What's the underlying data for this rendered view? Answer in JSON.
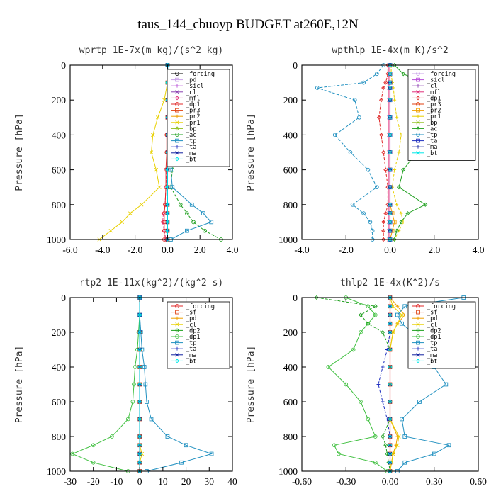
{
  "figure_title": "taus_144_cbuoyp  BUDGET at260E,12N",
  "chart_data": [
    {
      "type": "line",
      "title": "wprtp  1E-7x(m kg)/(s^2 kg)",
      "ylabel": "Pressure [hPa]",
      "xlim": [
        -6,
        4
      ],
      "ylim": [
        1000,
        0
      ],
      "xticks": [
        "-6.0",
        "-4.0",
        "-2.0",
        "0.0",
        "2.0",
        "4.0"
      ],
      "xtick_values": [
        -6,
        -4,
        -2,
        0,
        2,
        4
      ],
      "yticks": [
        "0",
        "200",
        "400",
        "600",
        "800",
        "1000"
      ],
      "ytick_values": [
        0,
        200,
        400,
        600,
        800,
        1000
      ],
      "legend_position": "top-right",
      "y": [
        0,
        100,
        200,
        300,
        400,
        500,
        600,
        700,
        800,
        850,
        900,
        950,
        1000
      ],
      "series": [
        {
          "name": "_forcing",
          "color": "#000000",
          "x": [
            0,
            0,
            0,
            0,
            0,
            0,
            0,
            0,
            0,
            0,
            0,
            0,
            0
          ]
        },
        {
          "name": "_pd",
          "color": "#c8a0e8",
          "x": [
            0,
            0,
            0,
            0,
            0,
            0,
            0,
            0,
            0,
            0,
            0,
            0,
            0
          ]
        },
        {
          "name": "_sicl",
          "color": "#b84fd8",
          "x": [
            0,
            0,
            0,
            0,
            0,
            0,
            0,
            0,
            0,
            0,
            0,
            0,
            0
          ]
        },
        {
          "name": "_cl",
          "color": "#8a3fb0",
          "x": [
            0,
            0,
            0,
            0,
            0,
            0,
            0,
            0,
            0,
            0,
            0,
            0,
            0
          ]
        },
        {
          "name": "_mfl",
          "color": "#e0307a",
          "x": [
            0,
            0,
            0,
            0,
            0,
            0,
            -0.05,
            -0.1,
            -0.15,
            -0.25,
            -0.3,
            -0.2,
            -0.1
          ]
        },
        {
          "name": "_dp1",
          "color": "#e02828",
          "x": [
            0,
            0,
            0,
            0,
            -0.05,
            -0.05,
            -0.1,
            -0.1,
            -0.15,
            -0.2,
            -0.2,
            -0.2,
            -0.2
          ]
        },
        {
          "name": "_pr3",
          "color": "#e04010",
          "x": [
            0,
            0,
            0,
            0,
            0,
            0,
            0,
            0,
            0,
            0,
            0,
            0,
            0
          ]
        },
        {
          "name": "_pr2",
          "color": "#f0a000",
          "x": [
            0,
            0,
            0,
            0,
            0,
            0,
            0,
            0,
            0,
            0,
            0,
            0,
            0
          ]
        },
        {
          "name": "_pr1",
          "color": "#e8d000",
          "x": [
            0,
            0,
            -0.2,
            -0.6,
            -0.9,
            -1.0,
            -0.7,
            -0.5,
            -1.6,
            -2.3,
            -2.8,
            -3.5,
            -4.2
          ]
        },
        {
          "name": "_bp",
          "color": "#90c020",
          "x": [
            0,
            0,
            0,
            0,
            0,
            0,
            0,
            0,
            0,
            0,
            0,
            0,
            0
          ]
        },
        {
          "name": "_ac",
          "color": "#20a020",
          "x": [
            0,
            0,
            0.2,
            0.4,
            0.6,
            0.5,
            0.3,
            0.2,
            0.8,
            1.2,
            1.6,
            2.3,
            3.3
          ]
        },
        {
          "name": "_tp",
          "color": "#2090c0",
          "x": [
            0,
            0.1,
            0.3,
            0.4,
            0.5,
            0.4,
            0.2,
            0.3,
            1.5,
            2.2,
            2.7,
            1.2,
            0.2
          ]
        },
        {
          "name": "_ta",
          "color": "#2030c0",
          "x": [
            0,
            0,
            0,
            0,
            0,
            0,
            0,
            0,
            0,
            0,
            0,
            0,
            0
          ]
        },
        {
          "name": "_ma",
          "color": "#1020a0",
          "x": [
            0,
            0,
            0,
            0,
            0,
            0,
            0,
            0,
            0,
            0,
            0,
            0,
            0
          ]
        },
        {
          "name": "_bt",
          "color": "#00e8e8",
          "x": [
            0,
            0,
            0,
            0,
            0,
            0,
            0,
            0,
            0,
            0,
            0,
            0,
            0
          ]
        }
      ]
    },
    {
      "type": "line",
      "title": "wpthlp  1E-4x(m K)/s^2",
      "ylabel": "Pressure [hPa]",
      "xlim": [
        -4,
        4
      ],
      "ylim": [
        1000,
        0
      ],
      "xticks": [
        "-4.0",
        "-2.0",
        "0.0",
        "2.0",
        "4.0"
      ],
      "xtick_values": [
        -4,
        -2,
        0,
        2,
        4
      ],
      "yticks": [
        "0",
        "200",
        "400",
        "600",
        "800",
        "1000"
      ],
      "ytick_values": [
        0,
        200,
        400,
        600,
        800,
        1000
      ],
      "legend_position": "top-right",
      "y": [
        0,
        50,
        100,
        130,
        200,
        300,
        400,
        500,
        600,
        700,
        800,
        850,
        900,
        950,
        1000
      ],
      "series": [
        {
          "name": "_forcing",
          "color": "#c8a0e8",
          "x": [
            0,
            0,
            0,
            0,
            0,
            0,
            0,
            0,
            0,
            0,
            0,
            0,
            0,
            0,
            0
          ]
        },
        {
          "name": "_sicl",
          "color": "#b84fd8",
          "x": [
            0,
            0,
            0,
            0,
            0,
            0,
            0,
            0,
            0,
            0,
            0,
            0,
            0,
            0,
            0
          ]
        },
        {
          "name": "_cl",
          "color": "#8a3fb0",
          "x": [
            0,
            0,
            0,
            0,
            0,
            0,
            0,
            0,
            0,
            0,
            0,
            0,
            0,
            0,
            0
          ]
        },
        {
          "name": "_mfl",
          "color": "#e0307a",
          "x": [
            -0.05,
            -0.05,
            -0.05,
            -0.05,
            -0.05,
            -0.05,
            -0.05,
            -0.05,
            -0.05,
            -0.05,
            -0.05,
            -0.05,
            -0.05,
            -0.05,
            -0.05
          ]
        },
        {
          "name": "_dp1",
          "color": "#e02828",
          "x": [
            -0.1,
            -0.1,
            -0.2,
            -0.3,
            -0.4,
            -0.5,
            -0.4,
            -0.3,
            -0.2,
            -0.1,
            -0.1,
            -0.2,
            -0.3,
            -0.3,
            -0.3
          ]
        },
        {
          "name": "_pr3",
          "color": "#e04010",
          "x": [
            0,
            0,
            0,
            0,
            0,
            0,
            0,
            0,
            0,
            0,
            0,
            0,
            0,
            0,
            0
          ]
        },
        {
          "name": "_pr2",
          "color": "#f0a000",
          "x": [
            0,
            0,
            0,
            0,
            0,
            0,
            0,
            0,
            0,
            0,
            0,
            0.1,
            0.2,
            0.1,
            0
          ]
        },
        {
          "name": "_pr1",
          "color": "#e8d000",
          "x": [
            0.05,
            0.05,
            0.1,
            0.15,
            0.2,
            0.3,
            0.5,
            0.4,
            0.2,
            0.1,
            0.3,
            0.5,
            0.6,
            0.4,
            0.2
          ]
        },
        {
          "name": "_bp",
          "color": "#90c020",
          "x": [
            0,
            0,
            0,
            0,
            0,
            0,
            0,
            0,
            0,
            0,
            0,
            0,
            0,
            0,
            0
          ]
        },
        {
          "name": "_ac",
          "color": "#20a020",
          "x": [
            0.2,
            0.6,
            1.5,
            3.3,
            1.2,
            1.0,
            1.6,
            1.2,
            0.6,
            0.4,
            1.6,
            0.8,
            0.5,
            0.3,
            0.2
          ]
        },
        {
          "name": "_tp",
          "color": "#2090c0",
          "x": [
            -0.3,
            -0.6,
            -1.2,
            -3.3,
            -1.6,
            -1.4,
            -2.5,
            -1.8,
            -1.0,
            -0.6,
            -1.7,
            -1.2,
            -0.9,
            -0.8,
            -0.8
          ]
        },
        {
          "name": "_ta",
          "color": "#2030c0",
          "x": [
            0,
            0,
            0,
            0,
            0,
            0,
            0,
            0,
            0,
            0,
            0,
            0,
            0,
            0,
            0
          ]
        },
        {
          "name": "_ma",
          "color": "#1020a0",
          "x": [
            0,
            0,
            0,
            0,
            0,
            0,
            0,
            0,
            0,
            0,
            0,
            0,
            0,
            0,
            0
          ]
        },
        {
          "name": "_bt",
          "color": "#00e8e8",
          "x": [
            0,
            0,
            0,
            0,
            0,
            0,
            0,
            0,
            0,
            0,
            0,
            0,
            0,
            0,
            0
          ]
        }
      ]
    },
    {
      "type": "line",
      "title": "rtp2  1E-11x(kg^2)/(kg^2 s)",
      "ylabel": "Pressure [hPa]",
      "xlim": [
        -30,
        40
      ],
      "ylim": [
        1000,
        0
      ],
      "xticks": [
        "-30",
        "-20",
        "-10",
        "0",
        "10",
        "20",
        "30",
        "40"
      ],
      "xtick_values": [
        -30,
        -20,
        -10,
        0,
        10,
        20,
        30,
        40
      ],
      "yticks": [
        "0",
        "200",
        "400",
        "600",
        "800",
        "1000"
      ],
      "ytick_values": [
        0,
        200,
        400,
        600,
        800,
        1000
      ],
      "legend_position": "top-right",
      "y": [
        0,
        100,
        200,
        300,
        400,
        500,
        600,
        700,
        800,
        850,
        900,
        950,
        1000
      ],
      "series": [
        {
          "name": "_forcing",
          "color": "#e02828",
          "x": [
            0,
            0,
            0,
            0,
            0,
            0,
            0,
            0,
            0,
            0,
            0,
            0,
            0
          ]
        },
        {
          "name": "_sf",
          "color": "#e04010",
          "x": [
            0,
            0,
            0,
            0,
            0,
            0,
            0,
            0,
            0,
            0,
            0,
            0,
            0
          ]
        },
        {
          "name": "_pd",
          "color": "#f0a000",
          "x": [
            0,
            0,
            0,
            0,
            0,
            0,
            0,
            0,
            0,
            0,
            0,
            0,
            0
          ]
        },
        {
          "name": "_cl",
          "color": "#e8d000",
          "x": [
            0,
            0,
            0,
            0,
            0,
            0,
            0,
            0,
            0,
            0,
            1,
            0,
            0
          ]
        },
        {
          "name": "_dp2",
          "color": "#20a020",
          "x": [
            0,
            0,
            0,
            0,
            0,
            0,
            0,
            0,
            0,
            0,
            0,
            0,
            0
          ]
        },
        {
          "name": "_dp1",
          "color": "#40c040",
          "x": [
            0,
            0,
            -0.5,
            -1,
            -2,
            -2.5,
            -3,
            -5,
            -12,
            -20,
            -29,
            -20,
            -5
          ]
        },
        {
          "name": "_tp",
          "color": "#2090c0",
          "x": [
            0,
            0,
            0.5,
            1,
            2,
            2.5,
            3,
            5,
            12,
            20,
            31,
            18,
            3
          ]
        },
        {
          "name": "_ta",
          "color": "#2030c0",
          "x": [
            0,
            0,
            0,
            0,
            0,
            0,
            0,
            0,
            0,
            0,
            0,
            0,
            0
          ]
        },
        {
          "name": "_ma",
          "color": "#1020a0",
          "x": [
            0,
            0,
            0,
            0,
            0,
            0,
            0,
            0,
            0,
            0,
            0,
            0,
            0
          ]
        },
        {
          "name": "_bt",
          "color": "#00e8e8",
          "x": [
            0,
            0,
            0,
            0,
            0,
            0,
            0,
            0,
            0,
            0,
            0,
            0,
            0
          ]
        }
      ]
    },
    {
      "type": "line",
      "title": "thlp2  1E-4x(K^2)/s",
      "ylabel": "Pressure [hPa]",
      "xlim": [
        -0.6,
        0.6
      ],
      "ylim": [
        1000,
        0
      ],
      "xticks": [
        "-0.60",
        "-0.30",
        "0.00",
        "0.30",
        "0.60"
      ],
      "xtick_values": [
        -0.6,
        -0.3,
        0,
        0.3,
        0.6
      ],
      "yticks": [
        "0",
        "200",
        "400",
        "600",
        "800",
        "1000"
      ],
      "ytick_values": [
        0,
        200,
        400,
        600,
        800,
        1000
      ],
      "legend_position": "top-right",
      "y": [
        0,
        50,
        100,
        150,
        200,
        300,
        400,
        500,
        600,
        700,
        800,
        850,
        900,
        950,
        1000
      ],
      "series": [
        {
          "name": "_forcing",
          "color": "#e02828",
          "x": [
            0,
            0,
            0,
            0,
            0,
            0,
            0,
            0,
            0,
            0,
            0,
            0,
            0,
            0,
            0
          ]
        },
        {
          "name": "_sf",
          "color": "#e04010",
          "x": [
            0,
            0,
            0,
            0,
            0,
            0,
            0,
            0,
            0,
            0,
            0,
            0,
            0,
            0,
            0
          ]
        },
        {
          "name": "_pd",
          "color": "#f0a000",
          "x": [
            0,
            0.05,
            0.1,
            0.05,
            0.02,
            0,
            0,
            0,
            0,
            0,
            0.05,
            0.04,
            0.02,
            0.01,
            0
          ]
        },
        {
          "name": "_cl",
          "color": "#e8d000",
          "x": [
            0,
            0.02,
            0.08,
            0.05,
            0.02,
            0,
            0,
            0,
            0,
            0,
            0.06,
            0.05,
            0.02,
            0.01,
            0
          ]
        },
        {
          "name": "_dp2",
          "color": "#20a020",
          "x": [
            -0.5,
            -0.1,
            -0.2,
            -0.15,
            -0.05,
            0,
            0,
            0,
            0,
            0,
            -0.05,
            -0.03,
            -0.02,
            -0.01,
            0
          ]
        },
        {
          "name": "_dp1",
          "color": "#40c040",
          "x": [
            -0.3,
            -0.15,
            -0.1,
            -0.15,
            -0.2,
            -0.25,
            -0.42,
            -0.3,
            -0.2,
            -0.15,
            -0.1,
            -0.38,
            -0.35,
            -0.1,
            -0.02
          ]
        },
        {
          "name": "_tp",
          "color": "#2090c0",
          "x": [
            0.5,
            0.1,
            0.05,
            0.08,
            0.15,
            0.25,
            0.3,
            0.38,
            0.2,
            0.08,
            0.1,
            0.4,
            0.3,
            0.1,
            0.05
          ]
        },
        {
          "name": "_ta",
          "color": "#2030c0",
          "x": [
            0,
            0,
            0,
            0,
            0,
            -0.02,
            -0.05,
            -0.08,
            -0.05,
            -0.02,
            0,
            0,
            0,
            0,
            0
          ]
        },
        {
          "name": "_ma",
          "color": "#1020a0",
          "x": [
            0,
            0,
            0,
            0,
            0,
            0,
            0,
            0,
            0,
            0,
            0,
            0,
            0,
            0,
            0
          ]
        },
        {
          "name": "_bt",
          "color": "#00e8e8",
          "x": [
            0,
            0,
            0,
            0,
            0,
            0,
            0,
            0,
            0,
            0,
            0,
            0,
            0,
            0,
            0
          ]
        }
      ]
    }
  ]
}
